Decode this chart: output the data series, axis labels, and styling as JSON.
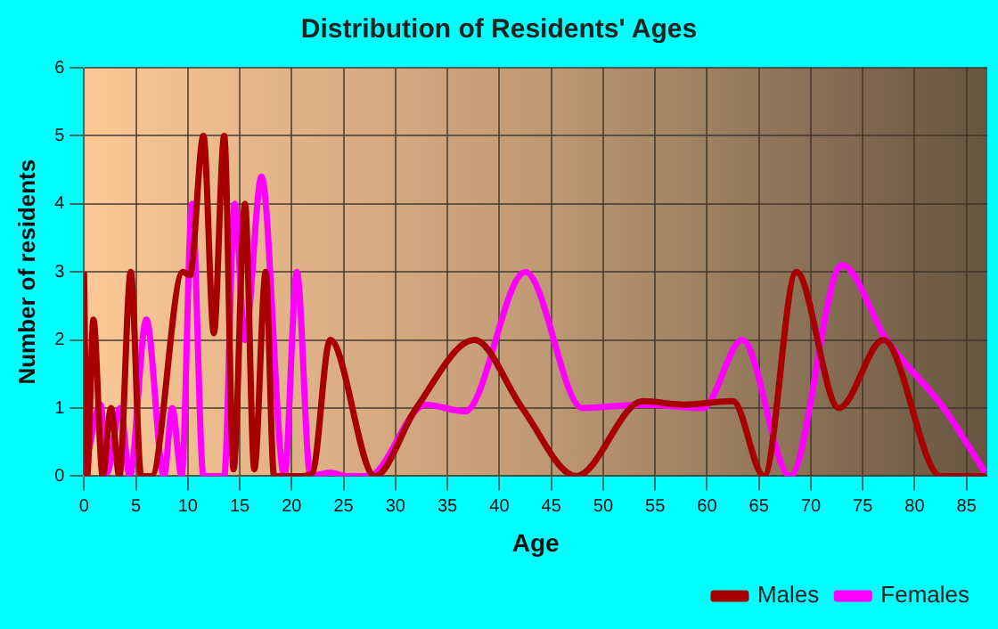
{
  "chart_data": {
    "type": "line",
    "title": "Distribution of Residents' Ages",
    "xlabel": "Age",
    "ylabel": "Number of residents",
    "xlim": [
      0,
      87
    ],
    "xticks": [
      0,
      5,
      10,
      15,
      20,
      25,
      30,
      35,
      40,
      45,
      50,
      55,
      60,
      65,
      70,
      75,
      80,
      85
    ],
    "ylim": [
      0,
      6
    ],
    "yticks": [
      0,
      1,
      2,
      3,
      4,
      5,
      6
    ],
    "grid": true,
    "legend": "bottom right",
    "marker": "none",
    "line_style": "solid",
    "series": [
      {
        "name": "Males",
        "color": "#a80000",
        "x": [
          0,
          0.3,
          0.9,
          1.8,
          2.6,
          3.4,
          4.5,
          5.5,
          6.5,
          9.5,
          10.2,
          11.5,
          12.5,
          13.5,
          14.4,
          15.5,
          16.4,
          17.5,
          18.3,
          21,
          22,
          23.7,
          28,
          32,
          37.6,
          42.2,
          47.4,
          53.8,
          57.8,
          62.5,
          65.5,
          68.6,
          72.7,
          77,
          82.5,
          86.8
        ],
        "values": [
          3,
          0,
          2.3,
          0,
          1,
          0,
          3,
          0,
          0,
          3,
          2.95,
          5,
          2.1,
          5,
          0.1,
          4,
          0.1,
          3,
          0,
          0,
          0.05,
          2,
          0,
          1,
          2,
          1,
          0,
          1.1,
          1.05,
          1.1,
          0,
          3,
          1,
          2,
          0,
          0
        ]
      },
      {
        "name": "Females",
        "color": "#ff00ff",
        "x": [
          0,
          1.6,
          2.2,
          3.5,
          4.4,
          6,
          7.7,
          8.5,
          9.4,
          10.4,
          11.5,
          13.5,
          14.5,
          15.5,
          17.1,
          19.3,
          20.5,
          21.8,
          23.7,
          25.4,
          27.4,
          32.9,
          36.7,
          42.5,
          48,
          53.8,
          59.6,
          63.4,
          68,
          73,
          77.3,
          82.8,
          86.8
        ],
        "values": [
          0,
          1.05,
          0.05,
          1,
          0,
          2.3,
          0,
          1,
          0,
          4,
          0,
          0,
          4,
          2,
          4.4,
          0,
          3,
          0,
          0.05,
          0,
          0,
          1.05,
          0.95,
          3,
          1,
          1.05,
          1,
          2,
          0,
          3.1,
          2,
          1,
          0.05
        ]
      }
    ]
  }
}
